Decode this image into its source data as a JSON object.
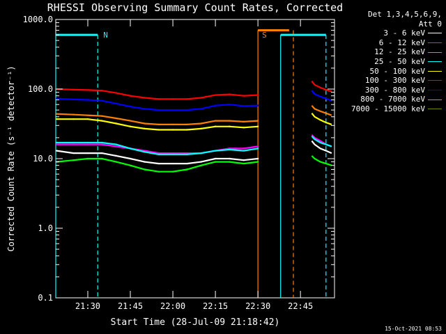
{
  "chart_data": {
    "type": "line",
    "title": "RHESSI Observing Summary Count Rates, Corrected",
    "xlabel": "Start Time (28-Jul-09 21:18:42)",
    "ylabel": "Corrected Count Rate (s⁻¹ detector⁻¹)",
    "yscale": "log",
    "ylim": [
      0.1,
      1000.0
    ],
    "yticks": [
      "1000.0",
      "100.0",
      "10.0",
      "1.0",
      "0.1"
    ],
    "xlim": [
      "21:18:42",
      "22:57:00"
    ],
    "xticks": [
      "21:30",
      "21:45",
      "22:00",
      "22:15",
      "22:30",
      "22:45"
    ],
    "x_times": [
      "21:19",
      "21:25",
      "21:30",
      "21:35",
      "21:40",
      "21:45",
      "21:50",
      "21:55",
      "22:00",
      "22:05",
      "22:10",
      "22:15",
      "22:20",
      "22:25",
      "22:30"
    ],
    "x_times_after": [
      "22:49",
      "22:50",
      "22:52",
      "22:54",
      "22:56"
    ],
    "series": [
      {
        "name": "3 - 6 keV",
        "color": "#ffffff",
        "values": [
          13,
          12,
          12,
          12,
          11,
          10,
          9,
          8.5,
          8.5,
          8.5,
          9,
          10,
          10,
          9.5,
          10
        ],
        "values_after": [
          18,
          16,
          14,
          13,
          12
        ]
      },
      {
        "name": "6 - 12 keV",
        "color": "#ff00ff",
        "values": [
          16,
          16,
          16,
          16,
          15,
          14,
          13,
          12,
          12,
          12,
          12,
          13,
          14,
          14,
          15
        ],
        "values_after": [
          22,
          20,
          18,
          16,
          15
        ]
      },
      {
        "name": "12 - 25 keV",
        "color": "#00ff00",
        "values": [
          9,
          9.5,
          10,
          10,
          9,
          8,
          7,
          6.5,
          6.5,
          7,
          8,
          9,
          9,
          8.5,
          9
        ],
        "values_after": [
          11,
          10,
          9,
          8.5,
          8
        ]
      },
      {
        "name": "25 - 50 keV",
        "color": "#00ffff",
        "values": [
          17,
          17,
          17,
          17,
          16,
          14,
          12.5,
          11.5,
          11.5,
          11.5,
          12,
          13,
          13.5,
          13,
          14
        ],
        "values_after": [
          21,
          19,
          17,
          16,
          15
        ]
      },
      {
        "name": "50 - 100 keV",
        "color": "#ffff00",
        "values": [
          37,
          37,
          37,
          35,
          32,
          29,
          27,
          26,
          26,
          26,
          27,
          29,
          29,
          28,
          29
        ],
        "values_after": [
          45,
          40,
          36,
          33,
          31
        ]
      },
      {
        "name": "100 - 300 keV",
        "color": "#ff0000",
        "values": [
          100,
          98,
          97,
          95,
          88,
          80,
          75,
          72,
          72,
          72,
          75,
          82,
          84,
          80,
          82
        ],
        "values_after": [
          130,
          115,
          105,
          98,
          92
        ]
      },
      {
        "name": "300 - 800 keV",
        "color": "#0000ff",
        "values": [
          73,
          71,
          70,
          68,
          62,
          56,
          52,
          50,
          50,
          50,
          52,
          58,
          60,
          57,
          58
        ],
        "values_after": [
          95,
          85,
          78,
          73,
          68
        ]
      },
      {
        "name": "800 - 7000 keV",
        "color": "#ff8000",
        "values": [
          44,
          43,
          42,
          41,
          38,
          35,
          32,
          31,
          31,
          31,
          32,
          35,
          35,
          34,
          35
        ],
        "values_after": [
          58,
          52,
          48,
          45,
          42
        ]
      },
      {
        "name": "7000 - 15000 keV",
        "color": "#808000",
        "values": [],
        "values_after": []
      }
    ],
    "annotations": [
      {
        "text": "N",
        "color": "#00ffff",
        "time": "21:34"
      },
      {
        "text": "S",
        "color": "#ff8000",
        "time": "22:30"
      }
    ],
    "markers": {
      "night": {
        "color": "#00ffff",
        "level": 600,
        "spans": [
          [
            "21:18:42",
            "21:33:30"
          ],
          [
            "22:38:00",
            "22:54:00"
          ]
        ],
        "dashed_at": [
          "21:33:30",
          "22:54:00"
        ],
        "solid_at": [
          "21:18:42",
          "22:38:00"
        ]
      },
      "saa": {
        "color": "#ff8000",
        "level": 700,
        "spans": [
          [
            "22:30:00",
            "22:41:00"
          ]
        ],
        "dashed_at": [
          "22:42:30"
        ],
        "solid_at": [
          "22:30:00"
        ]
      }
    },
    "grid": false,
    "legend_position": "top-right outside"
  },
  "legend": {
    "header_line1": "Det 1,3,4,5,6,9,",
    "header_line2": "Att 0"
  },
  "timestamp": "15-Oct-2021 08:53"
}
